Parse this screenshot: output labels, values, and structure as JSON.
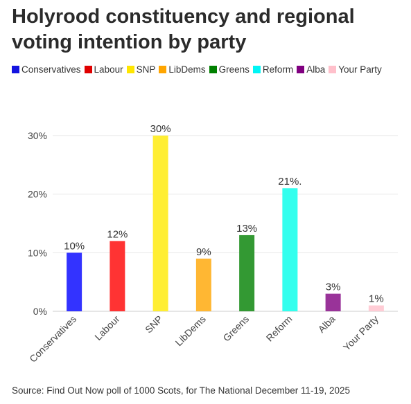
{
  "chart_data": {
    "type": "bar",
    "title": "Holyrood constituency and regional voting intention by party",
    "categories": [
      "Conservatives",
      "Labour",
      "SNP",
      "LibDems",
      "Greens",
      "Reform",
      "Alba",
      "Your Party"
    ],
    "values": [
      10,
      12,
      30,
      9,
      13,
      21,
      3,
      1
    ],
    "value_labels": [
      "10%",
      "12%",
      "30%",
      "9%",
      "13%",
      "21%.",
      "3%",
      "1%"
    ],
    "colors": [
      "#3333ff",
      "#ff3333",
      "#ffee33",
      "#ffb733",
      "#339933",
      "#33ffee",
      "#993399",
      "#ffccd5"
    ],
    "legend": [
      {
        "name": "Conservatives",
        "color": "#1414e0"
      },
      {
        "name": "Labour",
        "color": "#e00000"
      },
      {
        "name": "SNP",
        "color": "#ffe600"
      },
      {
        "name": "LibDems",
        "color": "#ffa500"
      },
      {
        "name": "Greens",
        "color": "#008000"
      },
      {
        "name": "Reform",
        "color": "#00f5f5"
      },
      {
        "name": "Alba",
        "color": "#800080"
      },
      {
        "name": "Your Party",
        "color": "#ffc0cb"
      }
    ],
    "legend_position": "top-left",
    "ylim": [
      0,
      30
    ],
    "yticks": [
      0,
      10,
      20,
      30
    ],
    "ytick_labels": [
      "0%",
      "10%",
      "20%",
      "30%"
    ],
    "grid": true,
    "xlabel": "",
    "ylabel": ""
  },
  "source": "Source: Find Out Now poll of 1000 Scots, for The National  December 11-19,  2025"
}
